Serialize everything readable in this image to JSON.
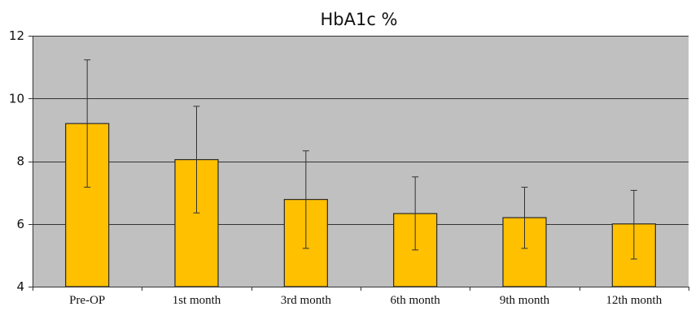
{
  "chart_data": {
    "type": "bar",
    "title": "HbA1c %",
    "xlabel": "",
    "ylabel": "",
    "categories": [
      "Pre-OP",
      "1st month",
      "3rd month",
      "6th month",
      "9th month",
      "12th month"
    ],
    "values": [
      9.2,
      8.05,
      6.78,
      6.33,
      6.2,
      6.0
    ],
    "error_low": [
      7.17,
      6.35,
      5.22,
      5.17,
      5.22,
      4.88
    ],
    "error_high": [
      11.23,
      9.75,
      8.33,
      7.5,
      7.17,
      7.07
    ],
    "yticks": [
      4,
      6,
      8,
      10,
      12
    ],
    "ylim": [
      4,
      12
    ],
    "grid": true,
    "colors": {
      "bar": "#ffc000",
      "bar_edge": "#2a2a2a",
      "plot_bg": "#c0c0c0",
      "grid": "#333333",
      "error_bar": "#333333"
    }
  }
}
